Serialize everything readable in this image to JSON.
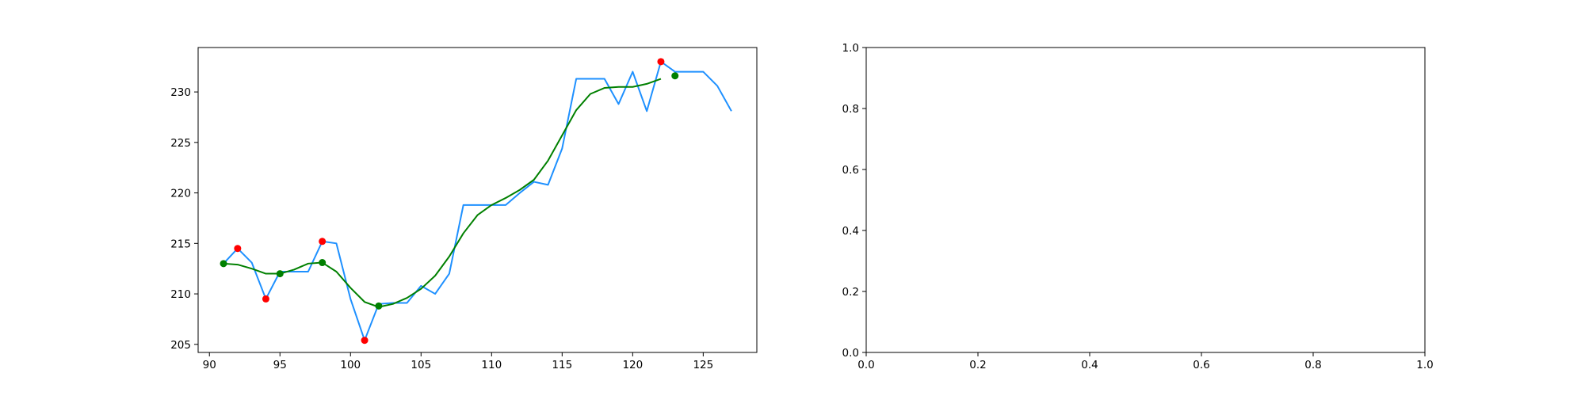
{
  "chart_data": [
    {
      "type": "line",
      "title": "",
      "xlabel": "",
      "ylabel": "",
      "xlim": [
        89.2,
        128.8
      ],
      "ylim": [
        204.2,
        234.4
      ],
      "xticks": [
        90,
        95,
        100,
        105,
        110,
        115,
        120,
        125
      ],
      "xtick_labels": [
        "90",
        "95",
        "100",
        "105",
        "110",
        "115",
        "120",
        "125"
      ],
      "yticks": [
        205,
        210,
        215,
        220,
        225,
        230
      ],
      "ytick_labels": [
        "205",
        "210",
        "215",
        "220",
        "225",
        "230"
      ],
      "grid": false,
      "colors": {
        "price": "#1e90ff",
        "smooth": "#008000",
        "red_points": "#ff0000",
        "green_points": "#008000"
      },
      "series": [
        {
          "style": "line",
          "color": "#1e90ff",
          "x": [
            91,
            92,
            93,
            94,
            95,
            96,
            97,
            98,
            99,
            100,
            101,
            102,
            103,
            104,
            105,
            106,
            107,
            108,
            109,
            110,
            111,
            112,
            113,
            114,
            115,
            116,
            117,
            118,
            119,
            120,
            121,
            122,
            123,
            124,
            125,
            126,
            127
          ],
          "y": [
            213.0,
            214.5,
            213.1,
            209.5,
            212.2,
            212.2,
            212.2,
            215.2,
            215.0,
            209.5,
            205.4,
            209.0,
            209.1,
            209.1,
            210.8,
            210.0,
            212.0,
            218.8,
            218.8,
            218.8,
            218.8,
            220.0,
            221.1,
            220.8,
            224.4,
            231.3,
            231.3,
            231.3,
            228.8,
            232.0,
            228.1,
            233.0,
            232.0,
            232.0,
            232.0,
            230.6,
            228.1
          ]
        },
        {
          "style": "line",
          "color": "#008000",
          "x": [
            91,
            92,
            93,
            94,
            95,
            96,
            97,
            98,
            99,
            100,
            101,
            102,
            103,
            104,
            105,
            106,
            107,
            108,
            109,
            110,
            111,
            112,
            113,
            114,
            115,
            116,
            117,
            118,
            119,
            120,
            121,
            122
          ],
          "y": [
            213.0,
            212.9,
            212.5,
            212.0,
            212.0,
            212.4,
            213.0,
            213.1,
            212.2,
            210.6,
            209.2,
            208.7,
            209.0,
            209.6,
            210.5,
            211.8,
            213.7,
            216.0,
            217.8,
            218.8,
            219.5,
            220.3,
            221.3,
            223.2,
            225.7,
            228.2,
            229.8,
            230.4,
            230.5,
            230.5,
            230.8,
            231.3
          ]
        },
        {
          "style": "scatter",
          "color": "#ff0000",
          "x": [
            92,
            94,
            98,
            101,
            122
          ],
          "y": [
            214.5,
            209.5,
            215.2,
            205.4,
            233.0
          ]
        },
        {
          "style": "scatter",
          "color": "#008000",
          "x": [
            91,
            95,
            98,
            102,
            123
          ],
          "y": [
            213.0,
            212.0,
            213.1,
            208.8,
            231.6
          ]
        }
      ]
    },
    {
      "type": "line",
      "title": "",
      "xlabel": "",
      "ylabel": "",
      "xlim": [
        0,
        1
      ],
      "ylim": [
        0,
        1
      ],
      "xticks": [
        0.0,
        0.2,
        0.4,
        0.6,
        0.8,
        1.0
      ],
      "xtick_labels": [
        "0.0",
        "0.2",
        "0.4",
        "0.6",
        "0.8",
        "1.0"
      ],
      "yticks": [
        0.0,
        0.2,
        0.4,
        0.6,
        0.8,
        1.0
      ],
      "ytick_labels": [
        "0.0",
        "0.2",
        "0.4",
        "0.6",
        "0.8",
        "1.0"
      ],
      "grid": false,
      "series": []
    }
  ]
}
